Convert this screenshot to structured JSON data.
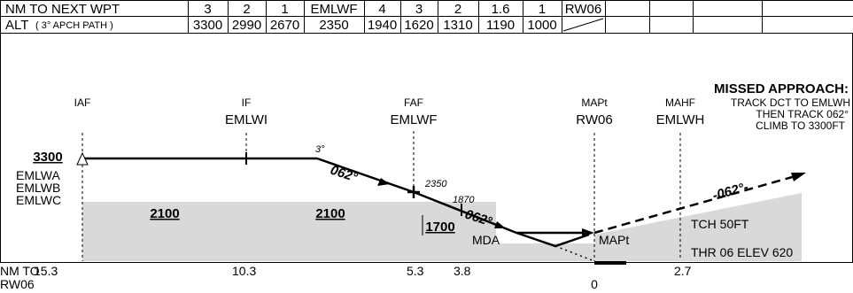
{
  "table": {
    "wpt_row": {
      "label": "NM TO NEXT WPT",
      "cells": [
        "3",
        "2",
        "1",
        "EMLWF",
        "4",
        "3",
        "2",
        "1.6",
        "1",
        "RW06"
      ]
    },
    "alt_row": {
      "label": "ALT",
      "sublabel": "( 3° APCH PATH )",
      "cells": [
        "3300",
        "2990",
        "2670",
        "2350",
        "1940",
        "1620",
        "1310",
        "1190",
        "1000"
      ]
    }
  },
  "profile": {
    "missed_approach": {
      "title": "MISSED APPROACH:",
      "lines": [
        "TRACK DCT TO EMLWH",
        "THEN TRACK 062°",
        "CLIMB TO 3300FT"
      ]
    },
    "fixes": [
      {
        "role": "IAF"
      },
      {
        "role": "IF",
        "name": "EMLWI"
      },
      {
        "role": "FAF",
        "name": "EMLWF"
      },
      {
        "role": "MAPt",
        "name": "RW06"
      },
      {
        "role": "MAHF",
        "name": "EMLWH"
      }
    ],
    "initial_altitude": "3300",
    "initial_waypoints": [
      "EMLWA",
      "EMLWB",
      "EMLWC"
    ],
    "minimum_altitudes": [
      "2100",
      "2100",
      "1700"
    ],
    "glide_angle": "3°",
    "tracks": [
      "062°",
      "062°",
      "-062°-"
    ],
    "faf_altitude": "2350",
    "step_altitude": "1870",
    "mda": "MDA",
    "mapt": "MAPt",
    "tch": "TCH 50FT",
    "threshold": "THR 06 ELEV 620",
    "distance_label": [
      "NM TO",
      "RW06"
    ],
    "distances": [
      "15.3",
      "10.3",
      "5.3",
      "3.8",
      "0",
      "2.7"
    ]
  }
}
